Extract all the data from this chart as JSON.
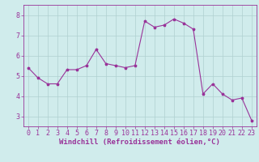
{
  "x": [
    0,
    1,
    2,
    3,
    4,
    5,
    6,
    7,
    8,
    9,
    10,
    11,
    12,
    13,
    14,
    15,
    16,
    17,
    18,
    19,
    20,
    21,
    22,
    23
  ],
  "y": [
    5.4,
    4.9,
    4.6,
    4.6,
    5.3,
    5.3,
    5.5,
    6.3,
    5.6,
    5.5,
    5.4,
    5.5,
    7.7,
    7.4,
    7.5,
    7.8,
    7.6,
    7.3,
    4.1,
    4.6,
    4.1,
    3.8,
    3.9,
    2.8
  ],
  "line_color": "#993399",
  "marker": "*",
  "bg_color": "#d0ecec",
  "grid_color": "#b0d0d0",
  "xlabel": "Windchill (Refroidissement éolien,°C)",
  "ylabel": "",
  "ylim": [
    2.5,
    8.5
  ],
  "xlim": [
    -0.5,
    23.5
  ],
  "yticks": [
    3,
    4,
    5,
    6,
    7,
    8
  ],
  "xticks": [
    0,
    1,
    2,
    3,
    4,
    5,
    6,
    7,
    8,
    9,
    10,
    11,
    12,
    13,
    14,
    15,
    16,
    17,
    18,
    19,
    20,
    21,
    22,
    23
  ],
  "xlabel_fontsize": 6.5,
  "tick_fontsize": 6.0
}
